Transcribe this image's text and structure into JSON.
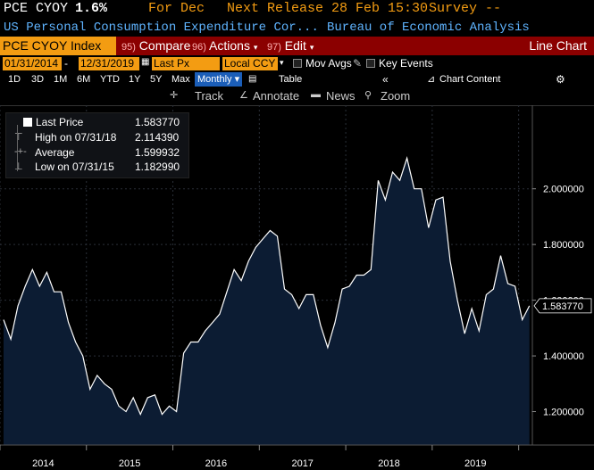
{
  "header": {
    "ticker": "PCE CYOY",
    "value": "1.6%",
    "period_label": "For Dec",
    "next_release": "Next Release 28 Feb 15:30",
    "survey": "Survey --",
    "description": "US Personal Consumption Expenditure Cor...",
    "source": "Bureau of Economic Analysis"
  },
  "toolbar": {
    "security": "PCE CYOY Index",
    "compare_num": "95)",
    "compare_label": "Compare",
    "actions_num": "96)",
    "actions_label": "Actions",
    "edit_num": "97)",
    "edit_label": "Edit",
    "chart_type": "Line Chart"
  },
  "options": {
    "start_date": "01/31/2014",
    "dash": "-",
    "end_date": "12/31/2019",
    "field": "Last Px",
    "currency": "Local CCY",
    "mov_avgs": "Mov Avgs",
    "key_events": "Key Events"
  },
  "periods": [
    "1D",
    "3D",
    "1M",
    "6M",
    "YTD",
    "1Y",
    "5Y",
    "Max"
  ],
  "frequency": "Monthly",
  "table_label": "Table",
  "chart_content": "Chart Content",
  "tools": {
    "track": "Track",
    "annotate": "Annotate",
    "news": "News",
    "zoom": "Zoom"
  },
  "legend": {
    "last_label": "Last Price",
    "last_value": "1.583770",
    "high_label": "High on 07/31/18",
    "high_value": "2.114390",
    "avg_label": "Average",
    "avg_value": "1.599932",
    "low_label": "Low on 07/31/15",
    "low_value": "1.182990"
  },
  "colors": {
    "area": "#0c1c33",
    "line": "#ffffff",
    "accent": "#f39c12",
    "toolbar": "#8b0000"
  },
  "chart_data": {
    "type": "area",
    "x_start": "2014-01",
    "frequency": "monthly",
    "ylim": [
      1.08,
      2.3
    ],
    "yticks": [
      "2.000000",
      "1.800000",
      "1.600000",
      "1.400000",
      "1.200000"
    ],
    "ytick_values": [
      2.0,
      1.8,
      1.6,
      1.4,
      1.2
    ],
    "xlabels": [
      "2014",
      "2015",
      "2016",
      "2017",
      "2018",
      "2019"
    ],
    "last_label": "1.583770",
    "values": [
      1.53,
      1.46,
      1.58,
      1.65,
      1.71,
      1.65,
      1.7,
      1.63,
      1.63,
      1.52,
      1.45,
      1.4,
      1.28,
      1.33,
      1.3,
      1.28,
      1.22,
      1.2,
      1.25,
      1.19,
      1.25,
      1.26,
      1.19,
      1.22,
      1.2,
      1.41,
      1.45,
      1.45,
      1.49,
      1.52,
      1.55,
      1.63,
      1.71,
      1.67,
      1.74,
      1.79,
      1.82,
      1.85,
      1.83,
      1.64,
      1.62,
      1.57,
      1.62,
      1.62,
      1.51,
      1.43,
      1.52,
      1.64,
      1.65,
      1.69,
      1.69,
      1.71,
      2.03,
      1.96,
      2.06,
      2.03,
      2.11,
      2.0,
      2.0,
      1.86,
      1.96,
      1.97,
      1.74,
      1.6,
      1.48,
      1.57,
      1.49,
      1.62,
      1.64,
      1.76,
      1.66,
      1.65,
      1.53,
      1.58
    ]
  }
}
